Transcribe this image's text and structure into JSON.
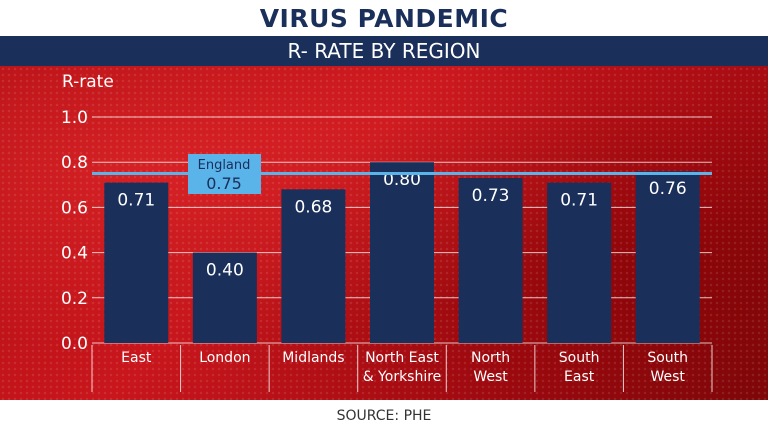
{
  "header": {
    "title": "VIRUS PANDEMIC",
    "subtitle": "R- RATE BY REGION"
  },
  "footer": {
    "source": "SOURCE: PHE"
  },
  "colors": {
    "bar": "#1a2f5a",
    "reference_line": "#5ab4ea",
    "background": "#b30f14",
    "header_band": "#1a2f5a"
  },
  "chart_data": {
    "type": "bar",
    "title": "R- RATE BY REGION",
    "ylabel": "R-rate",
    "xlabel": "",
    "ylim": [
      0,
      1.0
    ],
    "yticks": [
      0.0,
      0.2,
      0.4,
      0.6,
      0.8,
      1.0
    ],
    "ytick_labels": [
      "0.0",
      "0.2",
      "0.4",
      "0.6",
      "0.8",
      "1.0"
    ],
    "grid": true,
    "categories": [
      [
        "East"
      ],
      [
        "London"
      ],
      [
        "Midlands"
      ],
      [
        "North East",
        "& Yorkshire"
      ],
      [
        "North",
        "West"
      ],
      [
        "South",
        "East"
      ],
      [
        "South",
        "West"
      ]
    ],
    "values": [
      0.71,
      0.4,
      0.68,
      0.8,
      0.73,
      0.71,
      0.76
    ],
    "value_labels": [
      "0.71",
      "0.40",
      "0.68",
      "0.80",
      "0.73",
      "0.71",
      "0.76"
    ],
    "reference_line": {
      "label": "England",
      "value": 0.75,
      "value_label": "0.75"
    }
  }
}
